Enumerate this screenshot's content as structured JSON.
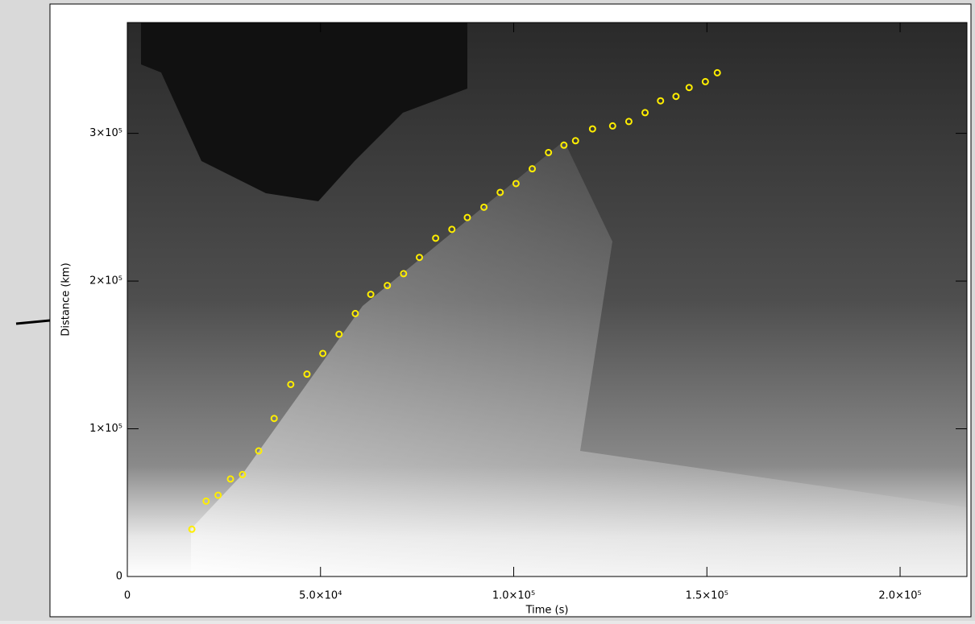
{
  "chart_data": {
    "type": "scatter",
    "x_label": "Time (s)",
    "y_label": "Distance (km)",
    "color": "#ffee00",
    "x": [
      16700,
      20400,
      23500,
      26700,
      29800,
      34000,
      38000,
      42300,
      46500,
      50600,
      54800,
      59000,
      63000,
      67300,
      71500,
      75600,
      79800,
      84000,
      88000,
      92300,
      96500,
      100600,
      104800,
      109000,
      113000,
      116000,
      120400,
      125600,
      129800,
      134000,
      138000,
      142000,
      145400,
      149600,
      152700
    ],
    "values": [
      32000,
      51000,
      55000,
      66000,
      69000,
      85000,
      107000,
      130000,
      137000,
      151000,
      164000,
      178000,
      191000,
      197000,
      205000,
      216000,
      229000,
      235000,
      243000,
      250000,
      260000,
      266000,
      276000,
      287000,
      292000,
      295000,
      303000,
      305000,
      308000,
      314000,
      322000,
      325000,
      331000,
      335000,
      341000
    ],
    "xlim": [
      0,
      217300
    ],
    "ylim": [
      0,
      375000
    ],
    "xticks": [
      0,
      {
        "value": 50000,
        "label": "5.0×10⁴"
      },
      {
        "value": 100000,
        "label": "1.0×10⁵"
      },
      {
        "value": 150000,
        "label": "1.5×10⁵"
      },
      {
        "value": 200000,
        "label": "2.0×10⁵"
      }
    ],
    "yticks": [
      0,
      {
        "value": 100000,
        "label": "1×10⁵"
      },
      {
        "value": 200000,
        "label": "2×10⁵"
      },
      {
        "value": 300000,
        "label": "3×10⁵"
      }
    ]
  }
}
